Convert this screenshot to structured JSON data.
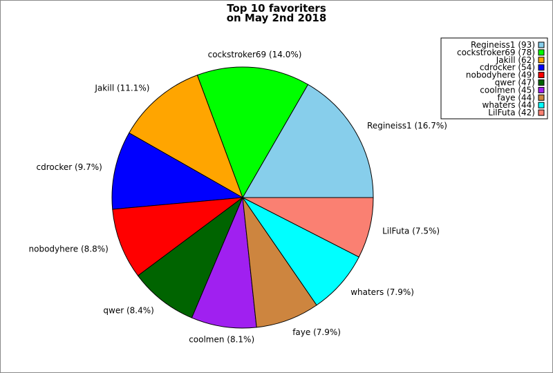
{
  "chart_data": {
    "type": "pie",
    "title": "Top 10 favoriters\non May 2nd 2018",
    "legend_position": "top-right",
    "start_angle_deg": 0,
    "direction": "counterclockwise",
    "slices": [
      {
        "label": "Regineiss1",
        "value": 93,
        "percent": "16.7%",
        "color": "#87ceeb"
      },
      {
        "label": "cockstroker69",
        "value": 78,
        "percent": "14.0%",
        "color": "#00ff00"
      },
      {
        "label": "Jakill",
        "value": 62,
        "percent": "11.1%",
        "color": "#ffa500"
      },
      {
        "label": "cdrocker",
        "value": 54,
        "percent": "9.7%",
        "color": "#0000ff"
      },
      {
        "label": "nobodyhere",
        "value": 49,
        "percent": "8.8%",
        "color": "#ff0000"
      },
      {
        "label": "qwer",
        "value": 47,
        "percent": "8.4%",
        "color": "#006400"
      },
      {
        "label": "coolmen",
        "value": 45,
        "percent": "8.1%",
        "color": "#a020f0"
      },
      {
        "label": "faye",
        "value": 44,
        "percent": "7.9%",
        "color": "#cd853f"
      },
      {
        "label": "whaters",
        "value": 44,
        "percent": "7.9%",
        "color": "#00ffff"
      },
      {
        "label": "LilFuta",
        "value": 42,
        "percent": "7.5%",
        "color": "#fa8072"
      }
    ]
  }
}
